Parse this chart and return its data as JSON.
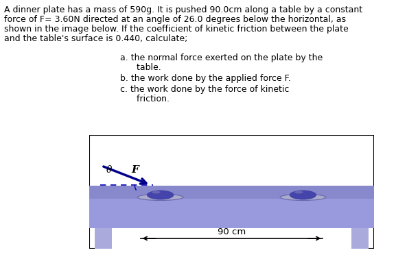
{
  "bg_color": "#ffffff",
  "text_color": "#000000",
  "para_lines": [
    "A dinner plate has a mass of 590g. It is pushed 90.0cm along a table by a constant",
    "force of F= 3.60N directed at an angle of 26.0 degrees below the horizontal, as",
    "shown in the image below. If the coefficient of kinetic friction between the plate",
    "and the table's surface is 0.440, calculate;"
  ],
  "item_a_line1": "a. the normal force exerted on the plate by the",
  "item_a_line2": "      table.",
  "item_b": "b. the work done by the applied force F.",
  "item_c_line1": "c. the work done by the force of kinetic",
  "item_c_line2": "      friction.",
  "diagram_border_color": "#000000",
  "table_surface_color": "#8888cc",
  "table_body_color": "#9999dd",
  "table_leg_color": "#aaaadd",
  "plate_rim_color": "#aaaacc",
  "plate_rim_edge": "#6666aa",
  "plate_dome_color": "#4444aa",
  "plate_dome_light": "#8888bb",
  "arrow_color": "#00008B",
  "dashed_line_color": "#0000aa",
  "angle_label": "θ",
  "force_label": "F",
  "distance_label": "90 cm",
  "font_family": "sans-serif",
  "font_size_para": 9.0,
  "font_size_items": 9.0,
  "font_size_diagram": 9.5
}
